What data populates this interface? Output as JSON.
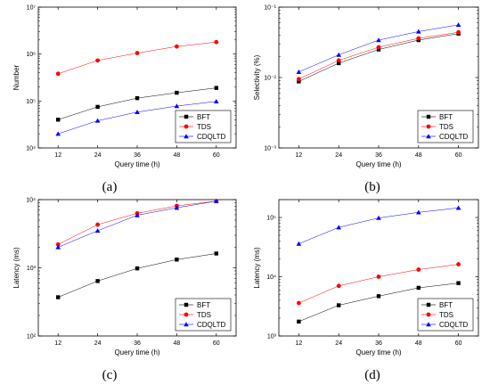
{
  "colors": {
    "BFT": "#000000",
    "TDS": "#ff0000",
    "CDQLTD": "#0000ff"
  },
  "chart_data": [
    {
      "panel": "(a)",
      "type": "line",
      "xlabel": "Query time (h)",
      "ylabel": "Number",
      "yscale": "log",
      "ylim": [
        10000,
        10000000
      ],
      "yticks": [
        10000,
        100000,
        1000000,
        10000000
      ],
      "ytick_labels": [
        "10⁴",
        "10⁵",
        "10⁶",
        "10⁷"
      ],
      "x": [
        12,
        24,
        36,
        48,
        60
      ],
      "xlim": [
        6,
        66
      ],
      "legend": "bottom-right",
      "series": [
        {
          "name": "BFT",
          "marker": "square",
          "values": [
            40000,
            75000,
            115000,
            150000,
            190000
          ]
        },
        {
          "name": "TDS",
          "marker": "circle",
          "values": [
            380000,
            730000,
            1050000,
            1450000,
            1800000
          ]
        },
        {
          "name": "CDQLTD",
          "marker": "triangle",
          "values": [
            20000,
            38000,
            58000,
            78000,
            98000
          ]
        }
      ]
    },
    {
      "panel": "(b)",
      "type": "line",
      "xlabel": "Query time (h)",
      "ylabel": "Selectivity (%)",
      "yscale": "log",
      "ylim": [
        0.001,
        0.1
      ],
      "yticks": [
        0.001,
        0.01,
        0.1
      ],
      "ytick_labels": [
        "10⁻³",
        "10⁻²",
        "10⁻¹"
      ],
      "x": [
        12,
        24,
        36,
        48,
        60
      ],
      "xlim": [
        6,
        66
      ],
      "legend": "bottom-right",
      "series": [
        {
          "name": "BFT",
          "marker": "square",
          "values": [
            0.0088,
            0.016,
            0.025,
            0.034,
            0.042
          ]
        },
        {
          "name": "TDS",
          "marker": "circle",
          "values": [
            0.0095,
            0.0175,
            0.027,
            0.036,
            0.044
          ]
        },
        {
          "name": "CDQLTD",
          "marker": "triangle",
          "values": [
            0.012,
            0.021,
            0.034,
            0.045,
            0.056
          ]
        }
      ]
    },
    {
      "panel": "(c)",
      "type": "line",
      "xlabel": "Query time (h)",
      "ylabel": "Latency (ms)",
      "yscale": "log",
      "ylim": [
        100,
        10000
      ],
      "yticks": [
        100,
        1000,
        10000
      ],
      "ytick_labels": [
        "10²",
        "10³",
        "10⁴"
      ],
      "x": [
        12,
        24,
        36,
        48,
        60
      ],
      "xlim": [
        6,
        66
      ],
      "legend": "bottom-right",
      "series": [
        {
          "name": "BFT",
          "marker": "square",
          "values": [
            370,
            640,
            980,
            1320,
            1620
          ]
        },
        {
          "name": "TDS",
          "marker": "circle",
          "values": [
            2200,
            4300,
            6300,
            8100,
            9500
          ]
        },
        {
          "name": "CDQLTD",
          "marker": "triangle",
          "values": [
            2000,
            3500,
            5900,
            7600,
            9500
          ]
        }
      ]
    },
    {
      "panel": "(d)",
      "type": "line",
      "xlabel": "Query time (h)",
      "ylabel": "Latency (ms)",
      "yscale": "log",
      "ylim": [
        1000,
        200000
      ],
      "yticks": [
        1000,
        10000,
        100000
      ],
      "ytick_labels": [
        "10³",
        "10⁴",
        "10⁵"
      ],
      "x": [
        12,
        24,
        36,
        48,
        60
      ],
      "xlim": [
        6,
        66
      ],
      "legend": "bottom-right",
      "series": [
        {
          "name": "BFT",
          "marker": "square",
          "values": [
            1750,
            3300,
            4700,
            6500,
            7800
          ]
        },
        {
          "name": "TDS",
          "marker": "circle",
          "values": [
            3600,
            7000,
            10000,
            13200,
            16200
          ]
        },
        {
          "name": "CDQLTD",
          "marker": "triangle",
          "values": [
            36000,
            68000,
            98000,
            122000,
            145000
          ]
        }
      ]
    }
  ]
}
